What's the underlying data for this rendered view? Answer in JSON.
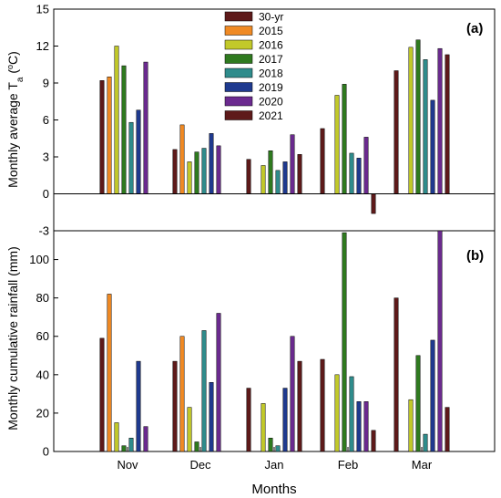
{
  "chart_data": [
    {
      "type": "bar",
      "panel_label": "(a)",
      "ylabel": {
        "prefix": "Monthly average T",
        "sub": "a",
        "suffix": " (",
        "sup": "o",
        "end": "C)"
      },
      "ylim": [
        -3,
        15
      ],
      "yticks": [
        -3,
        0,
        3,
        6,
        9,
        12,
        15
      ],
      "categories": [
        "Nov",
        "Dec",
        "Jan",
        "Feb",
        "Mar"
      ],
      "series": [
        {
          "name": "30-yr",
          "values": [
            9.2,
            3.6,
            2.8,
            5.3,
            10.0
          ]
        },
        {
          "name": "2015",
          "values": [
            9.5,
            5.6,
            null,
            null,
            null
          ]
        },
        {
          "name": "2016",
          "values": [
            12.0,
            2.6,
            2.3,
            8.0,
            11.9
          ]
        },
        {
          "name": "2017",
          "values": [
            10.4,
            3.4,
            3.5,
            8.9,
            12.5
          ]
        },
        {
          "name": "2018",
          "values": [
            5.8,
            3.7,
            1.9,
            3.3,
            10.9
          ]
        },
        {
          "name": "2019",
          "values": [
            6.8,
            4.9,
            2.6,
            2.9,
            7.6
          ]
        },
        {
          "name": "2020",
          "values": [
            10.7,
            3.9,
            4.8,
            4.6,
            11.8
          ]
        },
        {
          "name": "2021",
          "values": [
            null,
            null,
            3.2,
            -1.6,
            11.3
          ]
        }
      ]
    },
    {
      "type": "bar",
      "panel_label": "(b)",
      "ylabel": "Monthly cumulative rainfall (mm)",
      "xlabel": "Months",
      "ylim": [
        0,
        115
      ],
      "yticks": [
        0,
        20,
        40,
        60,
        80,
        100
      ],
      "categories": [
        "Nov",
        "Dec",
        "Jan",
        "Feb",
        "Mar"
      ],
      "series": [
        {
          "name": "30-yr",
          "values": [
            59,
            47,
            33,
            48,
            80
          ]
        },
        {
          "name": "2015",
          "values": [
            82,
            60,
            null,
            null,
            null
          ]
        },
        {
          "name": "2016",
          "values": [
            15,
            23,
            25,
            40,
            27
          ]
        },
        {
          "name": "2017",
          "values": [
            3,
            5,
            7,
            114,
            50
          ]
        },
        {
          "name": "2018",
          "values": [
            7,
            63,
            3,
            39,
            9
          ]
        },
        {
          "name": "2019",
          "values": [
            47,
            36,
            33,
            26,
            58
          ]
        },
        {
          "name": "2020",
          "values": [
            13,
            72,
            60,
            26,
            115
          ]
        },
        {
          "name": "2021",
          "values": [
            null,
            null,
            47,
            11,
            23
          ]
        }
      ]
    }
  ],
  "legend": {
    "placement": "top-center",
    "entries": [
      {
        "name": "30-yr",
        "color": "#5e1a1a"
      },
      {
        "name": "2015",
        "color": "#f08a24"
      },
      {
        "name": "2016",
        "color": "#c2c92a"
      },
      {
        "name": "2017",
        "color": "#2f7a1f"
      },
      {
        "name": "2018",
        "color": "#2f8c8c"
      },
      {
        "name": "2019",
        "color": "#1f3a8f"
      },
      {
        "name": "2020",
        "color": "#6b2a8f"
      },
      {
        "name": "2021",
        "color": "#5e1a1a"
      }
    ]
  }
}
